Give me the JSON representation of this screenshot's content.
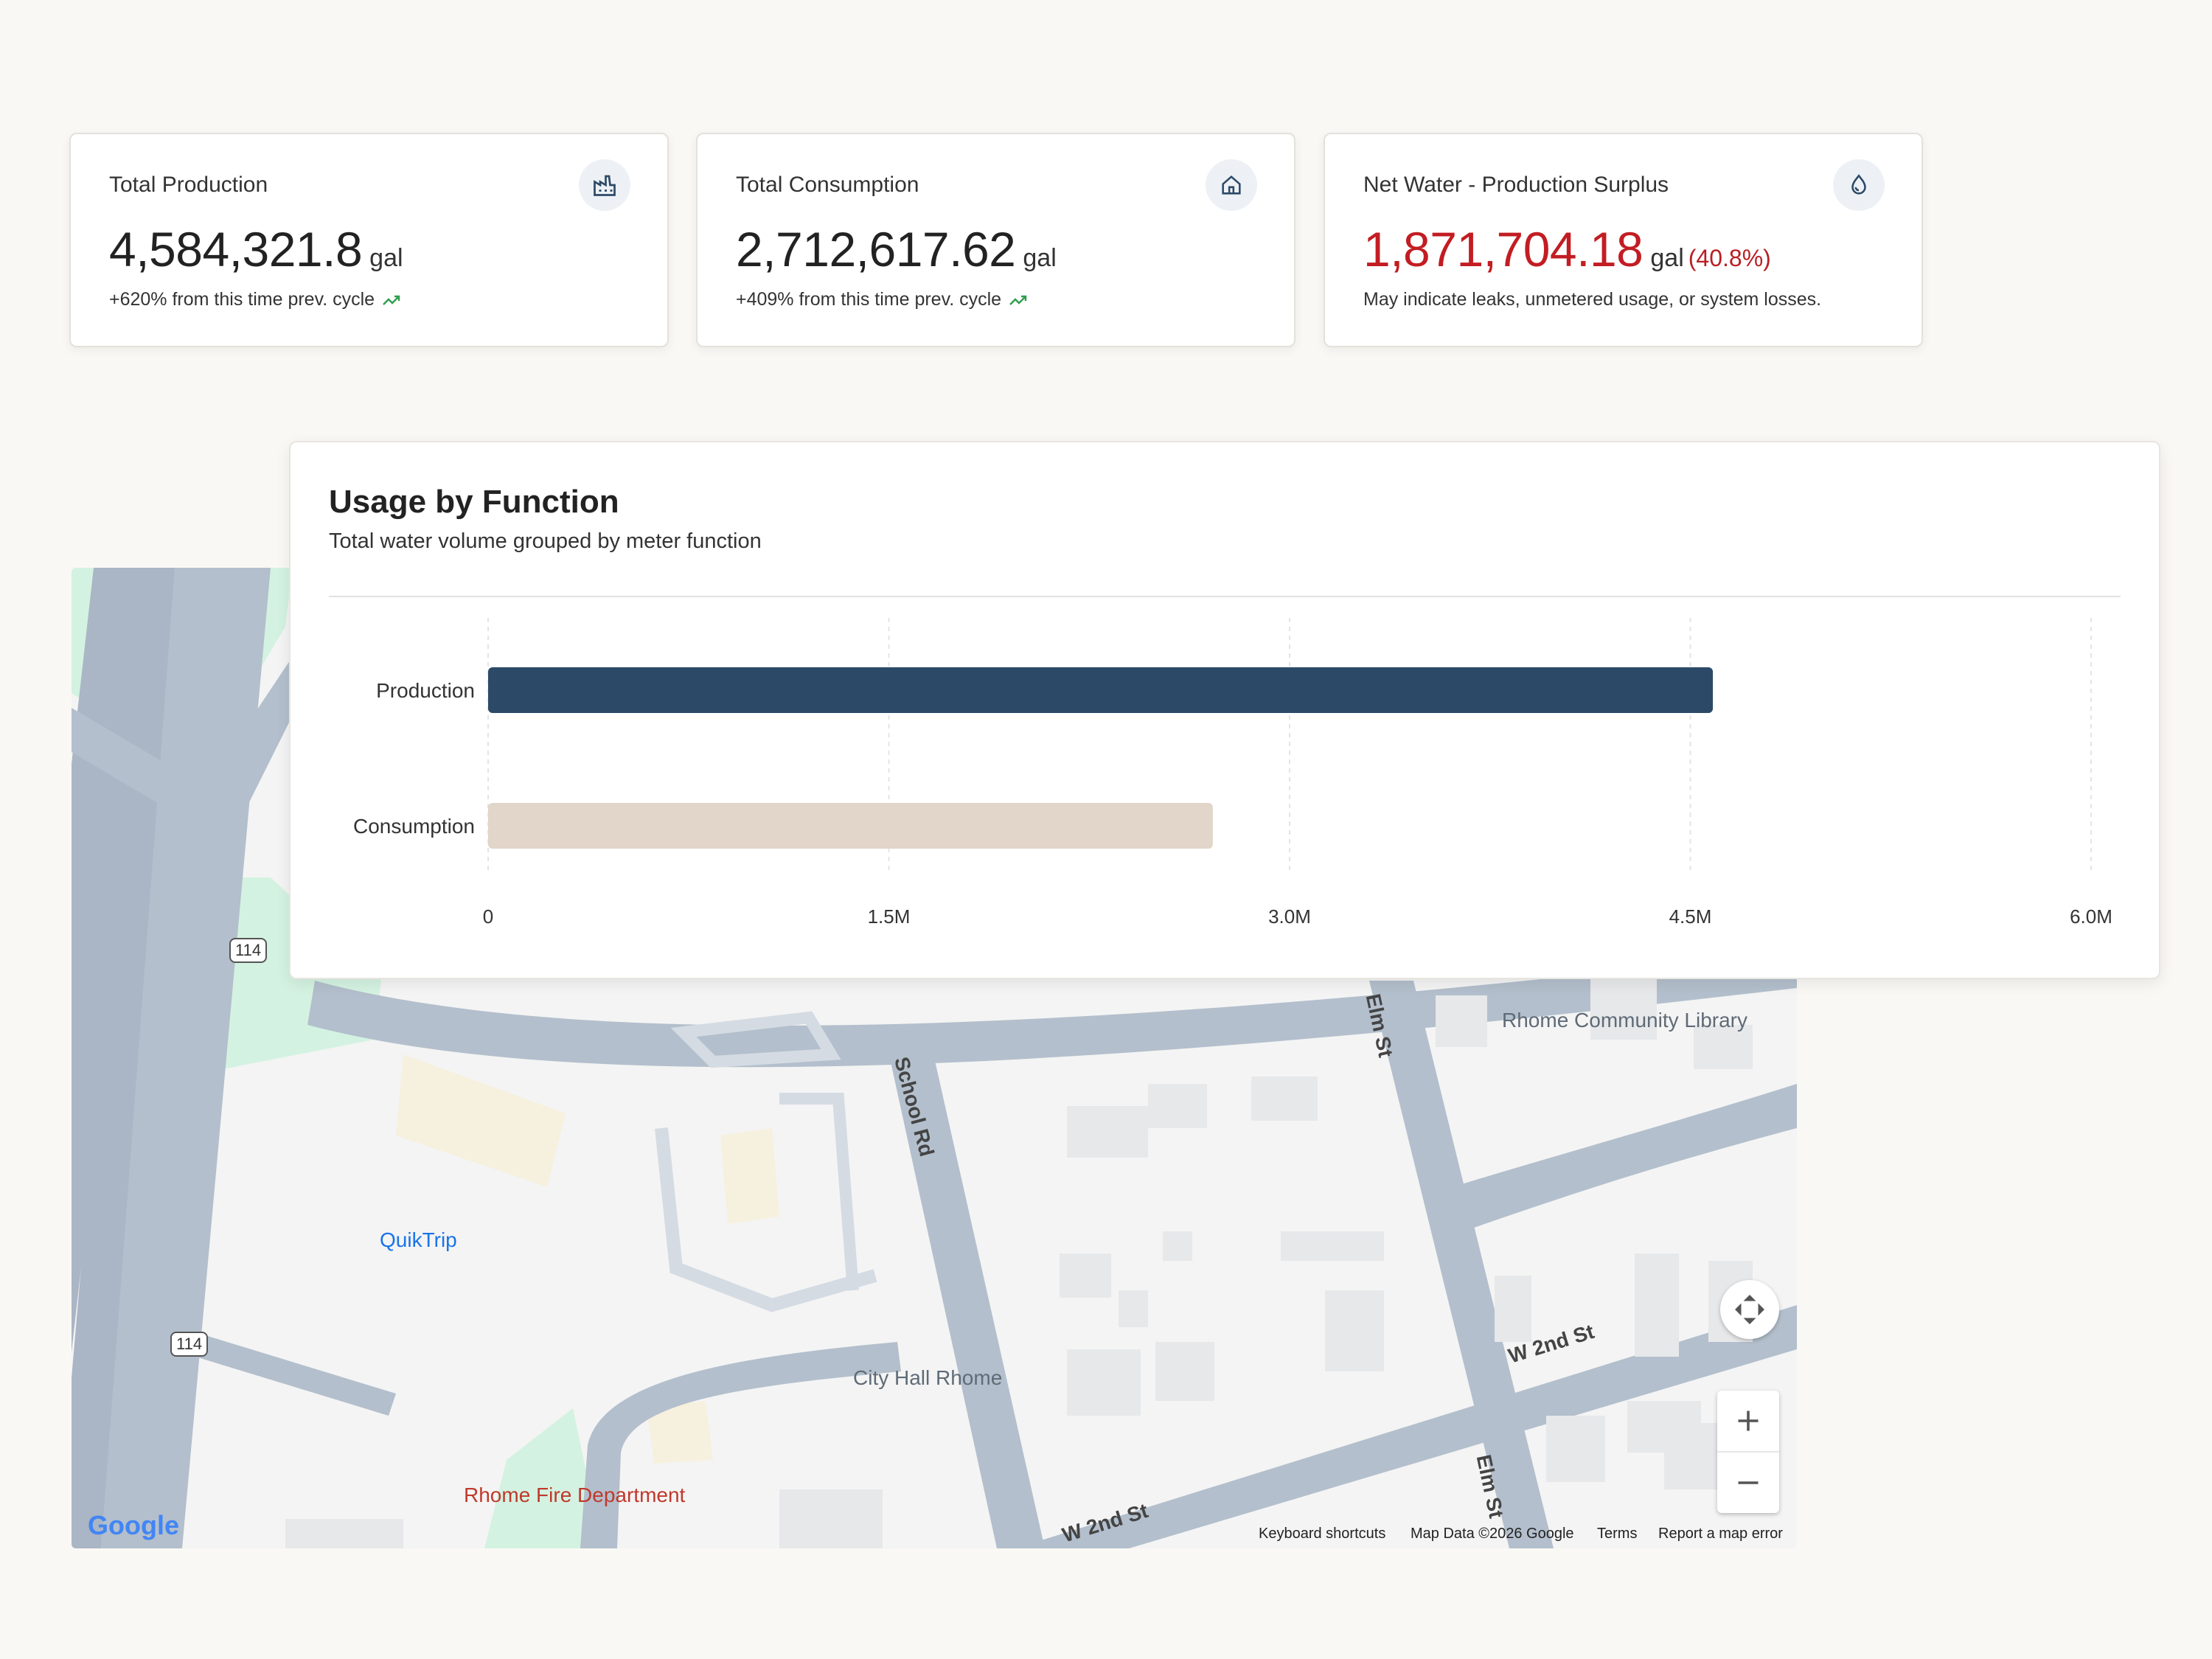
{
  "cards": [
    {
      "title": "Total Production",
      "value": "4,584,321.8",
      "unit": "gal",
      "sub": "+620% from this time prev. cycle",
      "icon": "factory-icon"
    },
    {
      "title": "Total Consumption",
      "value": "2,712,617.62",
      "unit": "gal",
      "sub": "+409% from this time prev. cycle",
      "icon": "house-icon"
    },
    {
      "title": "Net Water - Production Surplus",
      "value": "1,871,704.18",
      "unit": "gal",
      "pct": "(40.8%)",
      "sub": "May indicate leaks, unmetered usage, or system losses.",
      "icon": "water-drop-icon"
    }
  ],
  "colors": {
    "production": "#2c4a68",
    "consumption": "#e2d5c9",
    "alert": "#c21d23",
    "pin": "#2c4a68",
    "pin_alert": "#cc1d1d"
  },
  "chart_data": {
    "type": "bar",
    "orientation": "horizontal",
    "title": "Usage by Function",
    "subtitle": "Total water volume grouped by meter function",
    "categories": [
      "Production",
      "Consumption"
    ],
    "values": [
      4584321.8,
      2712617.62
    ],
    "xlim": [
      0,
      6000000
    ],
    "xticks": [
      0,
      1500000,
      3000000,
      4500000,
      6000000
    ],
    "xtick_labels": [
      "0",
      "1.5M",
      "3.0M",
      "4.5M",
      "6.0M"
    ],
    "grid": "vertical dashed"
  },
  "map": {
    "pois": {
      "library": "Rhome Community Library",
      "city_hall": "City Hall Rhome",
      "fire_department": "Rhome Fire Department",
      "quiktrip": "QuikTrip"
    },
    "streets": {
      "school_rd": "School Rd",
      "elm_st_a": "Elm St",
      "elm_st_b": "Elm St",
      "w2nd_a": "W 2nd St",
      "w2nd_b": "W 2nd St",
      "hwy_a": "114",
      "hwy_b": "114"
    },
    "attribution": {
      "logo": "Google",
      "shortcuts": "Keyboard shortcuts",
      "data": "Map Data ©2026 Google",
      "terms": "Terms",
      "report": "Report a map error"
    }
  }
}
